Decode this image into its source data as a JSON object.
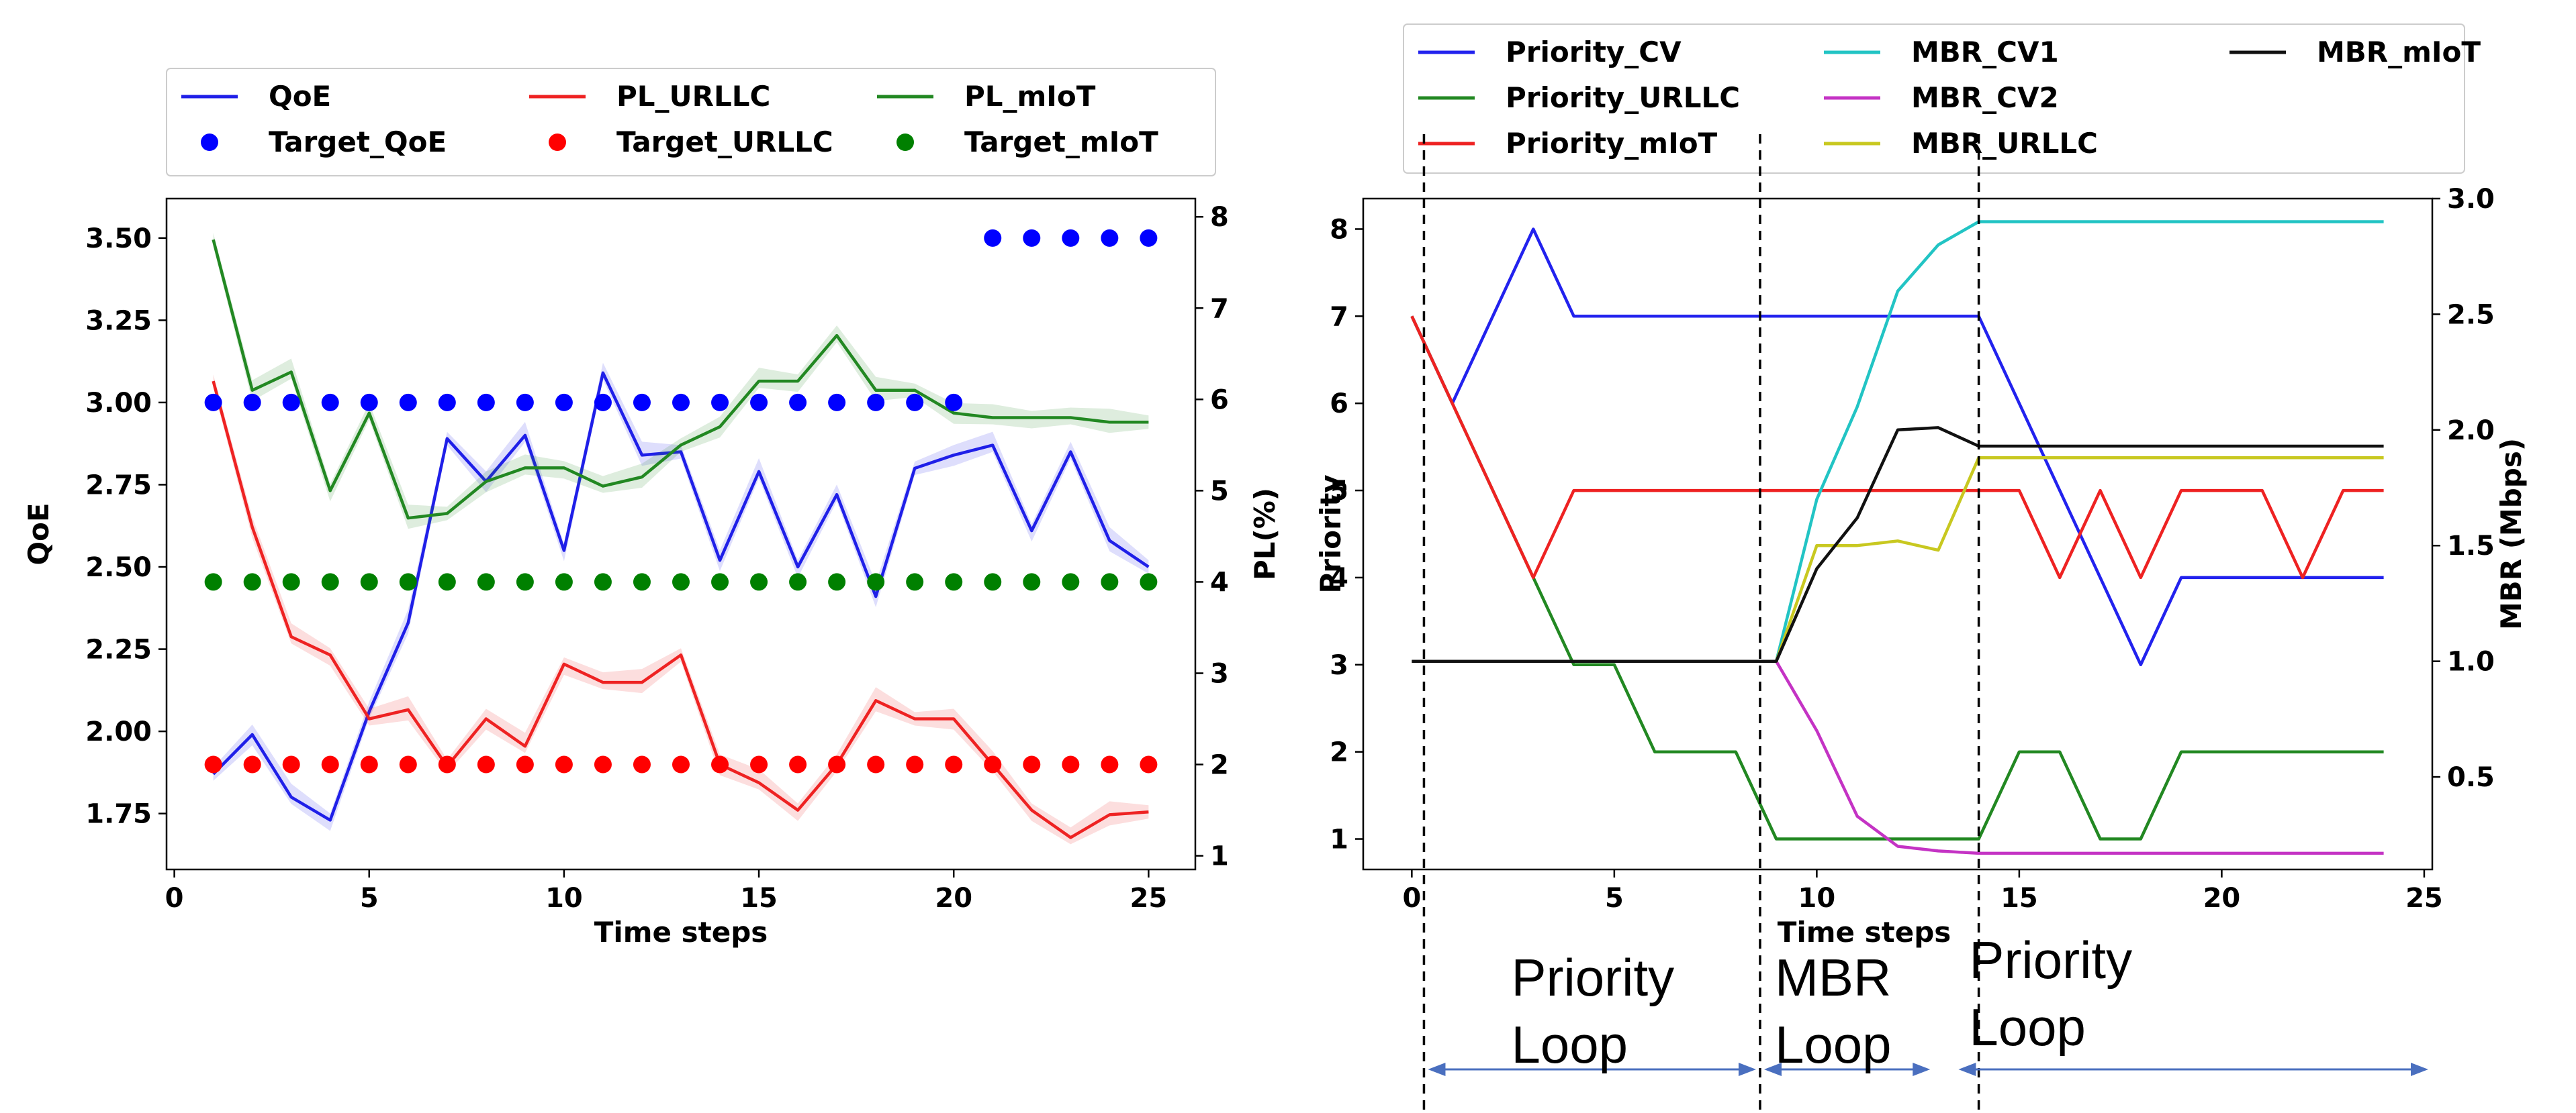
{
  "chart_data": [
    {
      "type": "line",
      "xlabel": "Time steps",
      "ylabel": "QoE",
      "y2label": "PL(%)",
      "xlim": [
        -0.2,
        26.2
      ],
      "ylim": [
        1.58,
        3.62
      ],
      "y2lim": [
        0.85,
        8.2
      ],
      "xticks": [
        "0",
        "5",
        "10",
        "15",
        "20",
        "25"
      ],
      "yticks": [
        "1.75",
        "2.00",
        "2.25",
        "2.50",
        "2.75",
        "3.00",
        "3.25",
        "3.50"
      ],
      "y2ticks": [
        "1",
        "2",
        "3",
        "4",
        "5",
        "6",
        "7",
        "8"
      ],
      "legend_position": "top",
      "x": [
        1,
        2,
        3,
        4,
        5,
        6,
        7,
        8,
        9,
        10,
        11,
        12,
        13,
        14,
        15,
        16,
        17,
        18,
        19,
        20,
        21,
        22,
        23,
        24,
        25
      ],
      "series": [
        {
          "name": "QoE",
          "axis": "left",
          "color": "#1f1fe8",
          "kind": "line",
          "band": true,
          "values": [
            1.87,
            1.99,
            1.8,
            1.73,
            2.06,
            2.33,
            2.89,
            2.76,
            2.9,
            2.55,
            3.09,
            2.84,
            2.85,
            2.52,
            2.79,
            2.5,
            2.72,
            2.41,
            2.8,
            2.84,
            2.87,
            2.61,
            2.85,
            2.58,
            2.5
          ]
        },
        {
          "name": "PL_URLLC",
          "axis": "right",
          "color": "#ee2222",
          "kind": "line",
          "band": true,
          "values": [
            6.2,
            4.6,
            3.4,
            3.2,
            2.5,
            2.6,
            1.98,
            2.5,
            2.2,
            3.1,
            2.9,
            2.9,
            3.2,
            2.0,
            1.8,
            1.5,
            2.0,
            2.7,
            2.5,
            2.5,
            2.0,
            1.5,
            1.2,
            1.45,
            1.48
          ]
        },
        {
          "name": "PL_mIoT",
          "axis": "right",
          "color": "#228822",
          "kind": "line",
          "band": true,
          "values": [
            7.75,
            6.1,
            6.3,
            5.0,
            5.85,
            4.7,
            4.75,
            5.1,
            5.25,
            5.25,
            5.05,
            5.15,
            5.5,
            5.7,
            6.2,
            6.2,
            6.7,
            6.1,
            6.1,
            5.85,
            5.8,
            5.8,
            5.8,
            5.75,
            5.75
          ]
        },
        {
          "name": "Target_QoE",
          "axis": "left",
          "color": "#0000ff",
          "kind": "scatter",
          "values": [
            3.0,
            3.0,
            3.0,
            3.0,
            3.0,
            3.0,
            3.0,
            3.0,
            3.0,
            3.0,
            3.0,
            3.0,
            3.0,
            3.0,
            3.0,
            3.0,
            3.0,
            3.0,
            3.0,
            3.0,
            3.5,
            3.5,
            3.5,
            3.5,
            3.5
          ]
        },
        {
          "name": "Target_URLLC",
          "axis": "right",
          "color": "#ff0000",
          "kind": "scatter",
          "values": [
            2,
            2,
            2,
            2,
            2,
            2,
            2,
            2,
            2,
            2,
            2,
            2,
            2,
            2,
            2,
            2,
            2,
            2,
            2,
            2,
            2,
            2,
            2,
            2,
            2
          ]
        },
        {
          "name": "Target_mIoT",
          "axis": "right",
          "color": "#008000",
          "kind": "scatter",
          "values": [
            4,
            4,
            4,
            4,
            4,
            4,
            4,
            4,
            4,
            4,
            4,
            4,
            4,
            4,
            4,
            4,
            4,
            4,
            4,
            4,
            4,
            4,
            4,
            4,
            4
          ]
        }
      ]
    },
    {
      "type": "line",
      "xlabel": "Time steps",
      "ylabel": "Priority",
      "y2label": "MBR (Mbps)",
      "xlim": [
        -1.2,
        25.2
      ],
      "ylim": [
        0.65,
        8.35
      ],
      "y2lim": [
        0.1,
        3.0
      ],
      "xticks": [
        "0",
        "5",
        "10",
        "15",
        "20",
        "25"
      ],
      "yticks": [
        "1",
        "2",
        "3",
        "4",
        "5",
        "6",
        "7",
        "8"
      ],
      "y2ticks": [
        "0.5",
        "1.0",
        "1.5",
        "2.0",
        "2.5",
        "3.0"
      ],
      "legend_position": "top",
      "x": [
        0,
        1,
        2,
        3,
        4,
        5,
        6,
        7,
        8,
        9,
        10,
        11,
        12,
        13,
        14,
        15,
        16,
        17,
        18,
        19,
        20,
        21,
        22,
        23,
        24
      ],
      "series": [
        {
          "name": "Priority_CV",
          "axis": "left",
          "color": "#2222ee",
          "values": [
            7,
            6,
            7,
            8,
            7,
            7,
            7,
            7,
            7,
            7,
            7,
            7,
            7,
            7,
            7,
            6,
            5,
            4,
            3,
            4,
            4,
            4,
            4,
            4,
            4
          ]
        },
        {
          "name": "Priority_URLLC",
          "axis": "left",
          "color": "#228822",
          "values": [
            7,
            6,
            5,
            4,
            3,
            3,
            2,
            2,
            2,
            1,
            1,
            1,
            1,
            1,
            1,
            2,
            2,
            1,
            1,
            2,
            2,
            2,
            2,
            2,
            2
          ]
        },
        {
          "name": "Priority_mIoT",
          "axis": "left",
          "color": "#ee2222",
          "values": [
            7,
            6,
            5,
            4,
            5,
            5,
            5,
            5,
            5,
            5,
            5,
            5,
            5,
            5,
            5,
            5,
            4,
            5,
            4,
            5,
            5,
            5,
            4,
            5,
            5
          ]
        },
        {
          "name": "MBR_CV1",
          "axis": "right",
          "color": "#22c4c4",
          "values": [
            1.0,
            1.0,
            1.0,
            1.0,
            1.0,
            1.0,
            1.0,
            1.0,
            1.0,
            1.0,
            1.7,
            2.1,
            2.6,
            2.8,
            2.9,
            2.9,
            2.9,
            2.9,
            2.9,
            2.9,
            2.9,
            2.9,
            2.9,
            2.9,
            2.9
          ]
        },
        {
          "name": "MBR_CV2",
          "axis": "right",
          "color": "#c433c4",
          "values": [
            1.0,
            1.0,
            1.0,
            1.0,
            1.0,
            1.0,
            1.0,
            1.0,
            1.0,
            1.0,
            0.7,
            0.33,
            0.2,
            0.18,
            0.17,
            0.17,
            0.17,
            0.17,
            0.17,
            0.17,
            0.17,
            0.17,
            0.17,
            0.17,
            0.17
          ]
        },
        {
          "name": "MBR_URLLC",
          "axis": "right",
          "color": "#c8c820",
          "values": [
            1.0,
            1.0,
            1.0,
            1.0,
            1.0,
            1.0,
            1.0,
            1.0,
            1.0,
            1.0,
            1.5,
            1.5,
            1.52,
            1.48,
            1.88,
            1.88,
            1.88,
            1.88,
            1.88,
            1.88,
            1.88,
            1.88,
            1.88,
            1.88,
            1.88
          ]
        },
        {
          "name": "MBR_mIoT",
          "axis": "right",
          "color": "#111111",
          "values": [
            1.0,
            1.0,
            1.0,
            1.0,
            1.0,
            1.0,
            1.0,
            1.0,
            1.0,
            1.0,
            1.4,
            1.62,
            2.0,
            2.01,
            1.93,
            1.93,
            1.93,
            1.93,
            1.93,
            1.93,
            1.93,
            1.93,
            1.93,
            1.93,
            1.93
          ]
        }
      ],
      "phase_boundaries": [
        0.3,
        8.6,
        14.0
      ],
      "phases": [
        {
          "label": "Priority\nLoop",
          "from": 0.3,
          "to": 8.6
        },
        {
          "label": "MBR\nLoop",
          "from": 8.6,
          "to": 12.9
        },
        {
          "label": "Priority\nLoop",
          "from": 13.4,
          "to": 25.2
        }
      ]
    }
  ]
}
